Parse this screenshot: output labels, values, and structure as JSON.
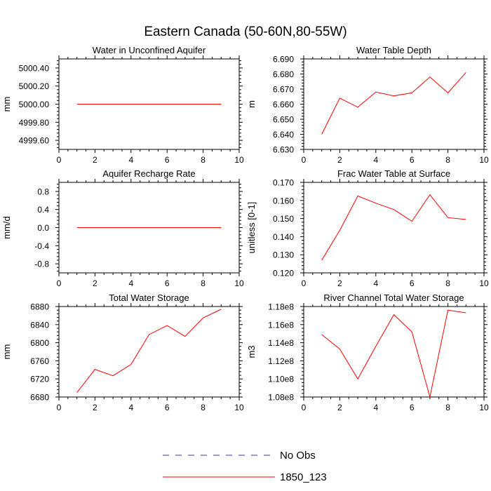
{
  "figure_title": "Eastern Canada (50-60N,80-55W)",
  "legend": {
    "items": [
      {
        "label": "No Obs",
        "color": "#3a3a9a",
        "style": "dashed"
      },
      {
        "label": "1850_123",
        "color": "#ff0000",
        "style": "solid"
      }
    ]
  },
  "chart_data": [
    {
      "type": "line",
      "title": "Water in Unconfined Aquifer",
      "xlabel": "",
      "ylabel": "mm",
      "xlim": [
        0,
        10
      ],
      "ylim": [
        4999.5,
        5000.5
      ],
      "xticks": [
        0,
        2,
        4,
        6,
        8,
        10
      ],
      "xtick_labels": [
        "0",
        "2",
        "4",
        "6",
        "8",
        "10"
      ],
      "yticks": [
        4999.6,
        4999.8,
        5000.0,
        5000.2,
        5000.4
      ],
      "ytick_labels": [
        "4999.60",
        "4999.80",
        "5000.00",
        "5000.20",
        "5000.40"
      ],
      "series": [
        {
          "name": "1850_123",
          "color": "#ff0000",
          "x": [
            1,
            2,
            3,
            4,
            5,
            6,
            7,
            8,
            9
          ],
          "values": [
            5000,
            5000,
            5000,
            5000,
            5000,
            5000,
            5000,
            5000,
            5000
          ]
        }
      ]
    },
    {
      "type": "line",
      "title": "Water Table Depth",
      "xlabel": "",
      "ylabel": "m",
      "xlim": [
        0,
        10
      ],
      "ylim": [
        6.63,
        6.69
      ],
      "xticks": [
        0,
        2,
        4,
        6,
        8,
        10
      ],
      "xtick_labels": [
        "0",
        "2",
        "4",
        "6",
        "8",
        "10"
      ],
      "yticks": [
        6.63,
        6.64,
        6.65,
        6.66,
        6.67,
        6.68,
        6.69
      ],
      "ytick_labels": [
        "6.630",
        "6.640",
        "6.650",
        "6.660",
        "6.670",
        "6.680",
        "6.690"
      ],
      "series": [
        {
          "name": "1850_123",
          "color": "#ff0000",
          "x": [
            1,
            2,
            3,
            4,
            5,
            6,
            7,
            8,
            9
          ],
          "values": [
            6.64,
            6.664,
            6.658,
            6.668,
            6.6655,
            6.6675,
            6.678,
            6.6675,
            6.681
          ]
        }
      ]
    },
    {
      "type": "line",
      "title": "Aquifer Recharge Rate",
      "xlabel": "",
      "ylabel": "mm/d",
      "xlim": [
        0,
        10
      ],
      "ylim": [
        -1,
        1
      ],
      "xticks": [
        0,
        2,
        4,
        6,
        8,
        10
      ],
      "xtick_labels": [
        "0",
        "2",
        "4",
        "6",
        "8",
        "10"
      ],
      "yticks": [
        -0.8,
        -0.4,
        0,
        0.4,
        0.8
      ],
      "ytick_labels": [
        "-0.8",
        "-0.4",
        "0.0",
        "0.4",
        "0.8"
      ],
      "series": [
        {
          "name": "1850_123",
          "color": "#ff0000",
          "x": [
            1,
            2,
            3,
            4,
            5,
            6,
            7,
            8,
            9
          ],
          "values": [
            0,
            0,
            0,
            0,
            0,
            0,
            0,
            0,
            0
          ]
        }
      ]
    },
    {
      "type": "line",
      "title": "Frac Water Table at Surface",
      "xlabel": "",
      "ylabel": "unitless [0-1]",
      "xlim": [
        0,
        10
      ],
      "ylim": [
        0.12,
        0.17
      ],
      "xticks": [
        0,
        2,
        4,
        6,
        8,
        10
      ],
      "xtick_labels": [
        "0",
        "2",
        "4",
        "6",
        "8",
        "10"
      ],
      "yticks": [
        0.12,
        0.13,
        0.14,
        0.15,
        0.16,
        0.17
      ],
      "ytick_labels": [
        "0.120",
        "0.130",
        "0.140",
        "0.150",
        "0.160",
        "0.170"
      ],
      "series": [
        {
          "name": "1850_123",
          "color": "#ff0000",
          "x": [
            1,
            2,
            3,
            4,
            5,
            6,
            7,
            8,
            9
          ],
          "values": [
            0.127,
            0.1435,
            0.1625,
            0.1585,
            0.155,
            0.1485,
            0.1632,
            0.1505,
            0.1495
          ]
        }
      ]
    },
    {
      "type": "line",
      "title": "Total Water Storage",
      "xlabel": "",
      "ylabel": "mm",
      "xlim": [
        0,
        10
      ],
      "ylim": [
        6680,
        6880
      ],
      "xticks": [
        0,
        2,
        4,
        6,
        8,
        10
      ],
      "xtick_labels": [
        "0",
        "2",
        "4",
        "6",
        "8",
        "10"
      ],
      "yticks": [
        6680,
        6720,
        6760,
        6800,
        6840,
        6880
      ],
      "ytick_labels": [
        "6680",
        "6720",
        "6760",
        "6800",
        "6840",
        "6880"
      ],
      "series": [
        {
          "name": "1850_123",
          "color": "#ff0000",
          "x": [
            1,
            2,
            3,
            4,
            5,
            6,
            7,
            8,
            9
          ],
          "values": [
            6690,
            6741,
            6727,
            6752,
            6818,
            6838,
            6814,
            6855,
            6874
          ]
        }
      ]
    },
    {
      "type": "line",
      "title": "River Channel Total Water Storage",
      "xlabel": "",
      "ylabel": "m3",
      "xlim": [
        0,
        10
      ],
      "ylim": [
        108000000,
        118000000
      ],
      "xticks": [
        0,
        2,
        4,
        6,
        8,
        10
      ],
      "xtick_labels": [
        "0",
        "2",
        "4",
        "6",
        "8",
        "10"
      ],
      "yticks": [
        108000000,
        110000000,
        112000000,
        114000000,
        116000000,
        118000000
      ],
      "ytick_labels": [
        "1.08e8",
        "1.10e8",
        "1.12e8",
        "1.14e8",
        "1.16e8",
        "1.18e8"
      ],
      "series": [
        {
          "name": "1850_123",
          "color": "#ff0000",
          "x": [
            1,
            2,
            3,
            4,
            5,
            6,
            7,
            8,
            9
          ],
          "values": [
            114900000,
            113300000,
            110000000,
            113600000,
            117100000,
            115200000,
            108000000,
            117600000,
            117300000
          ]
        }
      ]
    }
  ]
}
